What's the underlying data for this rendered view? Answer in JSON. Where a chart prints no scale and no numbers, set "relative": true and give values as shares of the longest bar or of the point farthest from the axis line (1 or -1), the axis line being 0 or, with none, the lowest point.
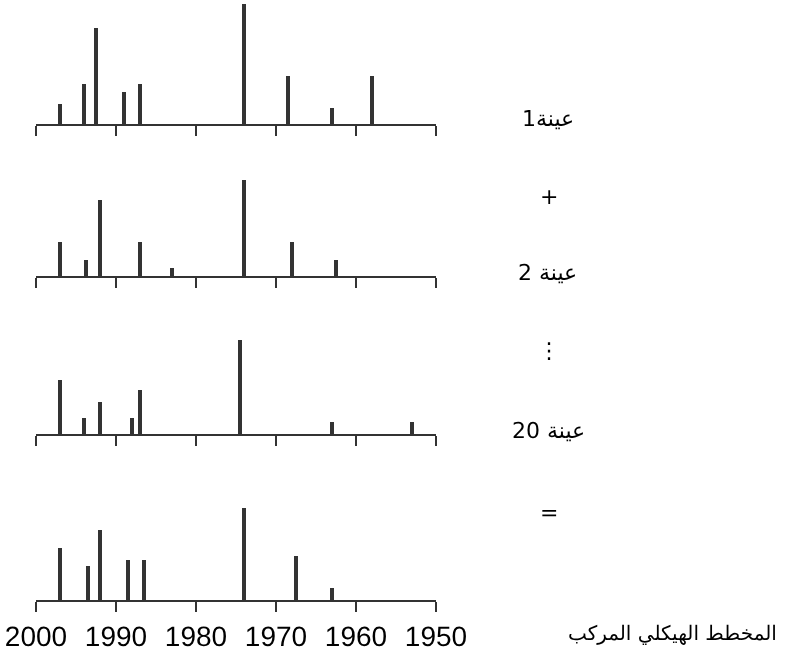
{
  "chart_data": [
    {
      "type": "bar",
      "relative": true,
      "x": [
        1997,
        1994,
        1992.5,
        1989,
        1987,
        1974,
        1968.5,
        1963,
        1958
      ],
      "values": [
        0.16,
        0.33,
        0.8,
        0.26,
        0.33,
        1,
        0.4,
        0.13,
        0.4
      ],
      "color": "#333333",
      "xlim": [
        2000,
        1950
      ],
      "xticks": [
        2000,
        1990,
        1980,
        1970,
        1960,
        1950
      ],
      "tick_labels": false,
      "annotations": [
        "عينة1",
        "+"
      ]
    },
    {
      "type": "bar",
      "relative": true,
      "x": [
        1997,
        1993.7,
        1992,
        1987,
        1983,
        1974,
        1968,
        1962.5
      ],
      "values": [
        0.35,
        0.16,
        0.8,
        0.35,
        0.08,
        1,
        0.36,
        0.17
      ],
      "color": "#333333",
      "xlim": [
        2000,
        1950
      ],
      "xticks": [
        2000,
        1990,
        1980,
        1970,
        1960,
        1950
      ],
      "tick_labels": false,
      "annotations": [
        "عينة 2",
        "⋮"
      ]
    },
    {
      "type": "bar",
      "relative": true,
      "x": [
        1997,
        1994,
        1992,
        1988,
        1987,
        1974.5,
        1963,
        1953
      ],
      "values": [
        0.57,
        0.17,
        0.34,
        0.17,
        0.46,
        1,
        0.12,
        0.12
      ],
      "color": "#333333",
      "xlim": [
        2000,
        1950
      ],
      "xticks": [
        2000,
        1990,
        1980,
        1970,
        1960,
        1950
      ],
      "tick_labels": false,
      "annotations": [
        "عينة 20",
        "="
      ]
    },
    {
      "type": "bar",
      "relative": true,
      "x": [
        1997,
        1993.5,
        1992,
        1988.5,
        1986.5,
        1974,
        1967.5,
        1963
      ],
      "values": [
        0.57,
        0.38,
        0.76,
        0.43,
        0.43,
        1,
        0.47,
        0.13
      ],
      "color": "#333333",
      "xlim": [
        2000,
        1950
      ],
      "xticks": [
        2000,
        1990,
        1980,
        1970,
        1960,
        1950
      ],
      "tick_labels": "x",
      "annotations": [
        "المخطط الهيكلي المركب"
      ]
    }
  ]
}
